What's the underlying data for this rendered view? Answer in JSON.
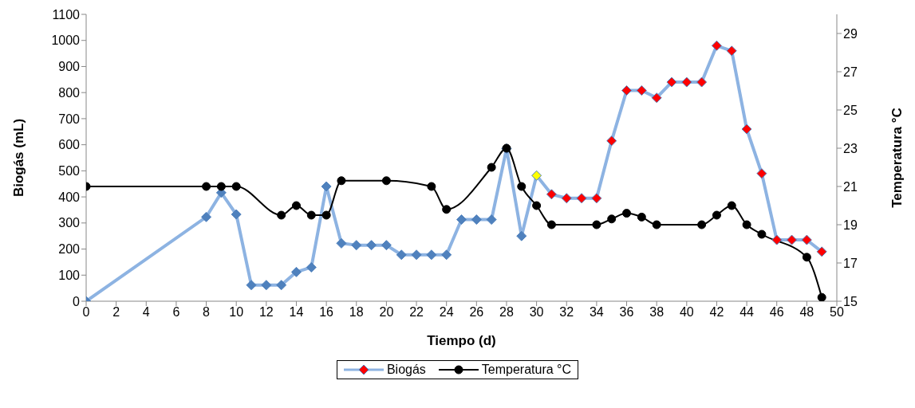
{
  "chart_data": {
    "type": "line",
    "xlabel": "Tiempo (d)",
    "ylabel": "Biogás (mL)",
    "y2label": "Temperatura  °C",
    "xlim": [
      0,
      50
    ],
    "xticks": [
      0,
      2,
      4,
      6,
      8,
      10,
      12,
      14,
      16,
      18,
      20,
      22,
      24,
      26,
      28,
      30,
      32,
      34,
      36,
      38,
      40,
      42,
      44,
      46,
      48,
      50
    ],
    "ylim": [
      0,
      1100
    ],
    "yticks": [
      0,
      100,
      200,
      300,
      400,
      500,
      600,
      700,
      800,
      900,
      1000,
      1100
    ],
    "y2lim": [
      15,
      30
    ],
    "y2ticks": [
      15,
      17,
      19,
      21,
      23,
      25,
      27,
      29
    ],
    "legend": "bottom",
    "series": [
      {
        "name": "Biogás",
        "color": "#8db3e2",
        "marker": "diamond",
        "x": [
          0,
          8,
          9,
          10,
          11,
          12,
          13,
          14,
          15,
          16,
          17,
          18,
          19,
          20,
          21,
          22,
          23,
          24,
          25,
          26,
          27,
          28,
          29,
          30,
          31,
          32,
          33,
          34,
          35,
          36,
          37,
          38,
          39,
          40,
          41,
          42,
          43,
          44,
          45,
          46,
          47,
          48,
          49
        ],
        "values": [
          0,
          323,
          416,
          333,
          62,
          62,
          62,
          112,
          130,
          440,
          222,
          215,
          215,
          215,
          178,
          178,
          178,
          178,
          313,
          313,
          313,
          585,
          250,
          482,
          410,
          395,
          395,
          395,
          615,
          808,
          808,
          780,
          840,
          840,
          840,
          980,
          960,
          660,
          490,
          235,
          235,
          235,
          190
        ],
        "colors": [
          "#4f81bd",
          "#4f81bd",
          "#4f81bd",
          "#4f81bd",
          "#4f81bd",
          "#4f81bd",
          "#4f81bd",
          "#4f81bd",
          "#4f81bd",
          "#4f81bd",
          "#4f81bd",
          "#4f81bd",
          "#4f81bd",
          "#4f81bd",
          "#4f81bd",
          "#4f81bd",
          "#4f81bd",
          "#4f81bd",
          "#4f81bd",
          "#4f81bd",
          "#4f81bd",
          "#4f81bd",
          "#4f81bd",
          "#ffff00",
          "#ff0000",
          "#ff0000",
          "#ff0000",
          "#ff0000",
          "#ff0000",
          "#ff0000",
          "#ff0000",
          "#ff0000",
          "#ff0000",
          "#ff0000",
          "#ff0000",
          "#ff0000",
          "#ff0000",
          "#ff0000",
          "#ff0000",
          "#ff0000",
          "#ff0000",
          "#ff0000",
          "#ff0000"
        ]
      },
      {
        "name": "Temperatura °C",
        "color": "#000000",
        "marker": "circle",
        "axis": "y2",
        "x": [
          0,
          8,
          9,
          10,
          13,
          14,
          15,
          16,
          17,
          20,
          23,
          24,
          27,
          28,
          29,
          30,
          31,
          34,
          35,
          36,
          37,
          38,
          41,
          42,
          43,
          44,
          45,
          48,
          49
        ],
        "values": [
          21,
          21,
          21,
          21,
          19.5,
          20,
          19.5,
          19.5,
          21.3,
          21.3,
          21,
          19.8,
          22,
          23,
          21,
          20,
          19,
          19,
          19.3,
          19.6,
          19.4,
          19,
          19,
          19.5,
          20,
          19,
          18.5,
          17.3,
          15.2
        ]
      }
    ]
  }
}
